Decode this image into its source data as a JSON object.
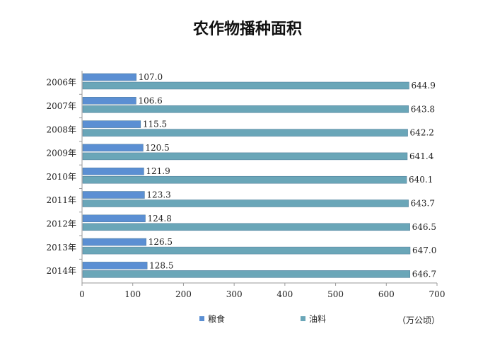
{
  "chart_data": {
    "type": "bar",
    "orientation": "horizontal",
    "title": "农作物播种面积",
    "categories": [
      "2006年",
      "2007年",
      "2008年",
      "2009年",
      "2010年",
      "2011年",
      "2012年",
      "2013年",
      "2014年"
    ],
    "series": [
      {
        "name": "粮食",
        "color": "#5b8fd3",
        "values": [
          107.0,
          106.6,
          115.5,
          120.5,
          121.9,
          123.3,
          124.8,
          126.5,
          128.5
        ]
      },
      {
        "name": "油料",
        "color": "#6aa6b8",
        "values": [
          644.9,
          643.8,
          642.2,
          641.4,
          640.1,
          643.7,
          646.5,
          647.0,
          646.7
        ]
      }
    ],
    "xlim": [
      0,
      700
    ],
    "xticks": [
      0,
      100,
      200,
      300,
      400,
      500,
      600,
      700
    ],
    "unit": "（万公顷）",
    "legend_position": "bottom",
    "grid": false
  }
}
